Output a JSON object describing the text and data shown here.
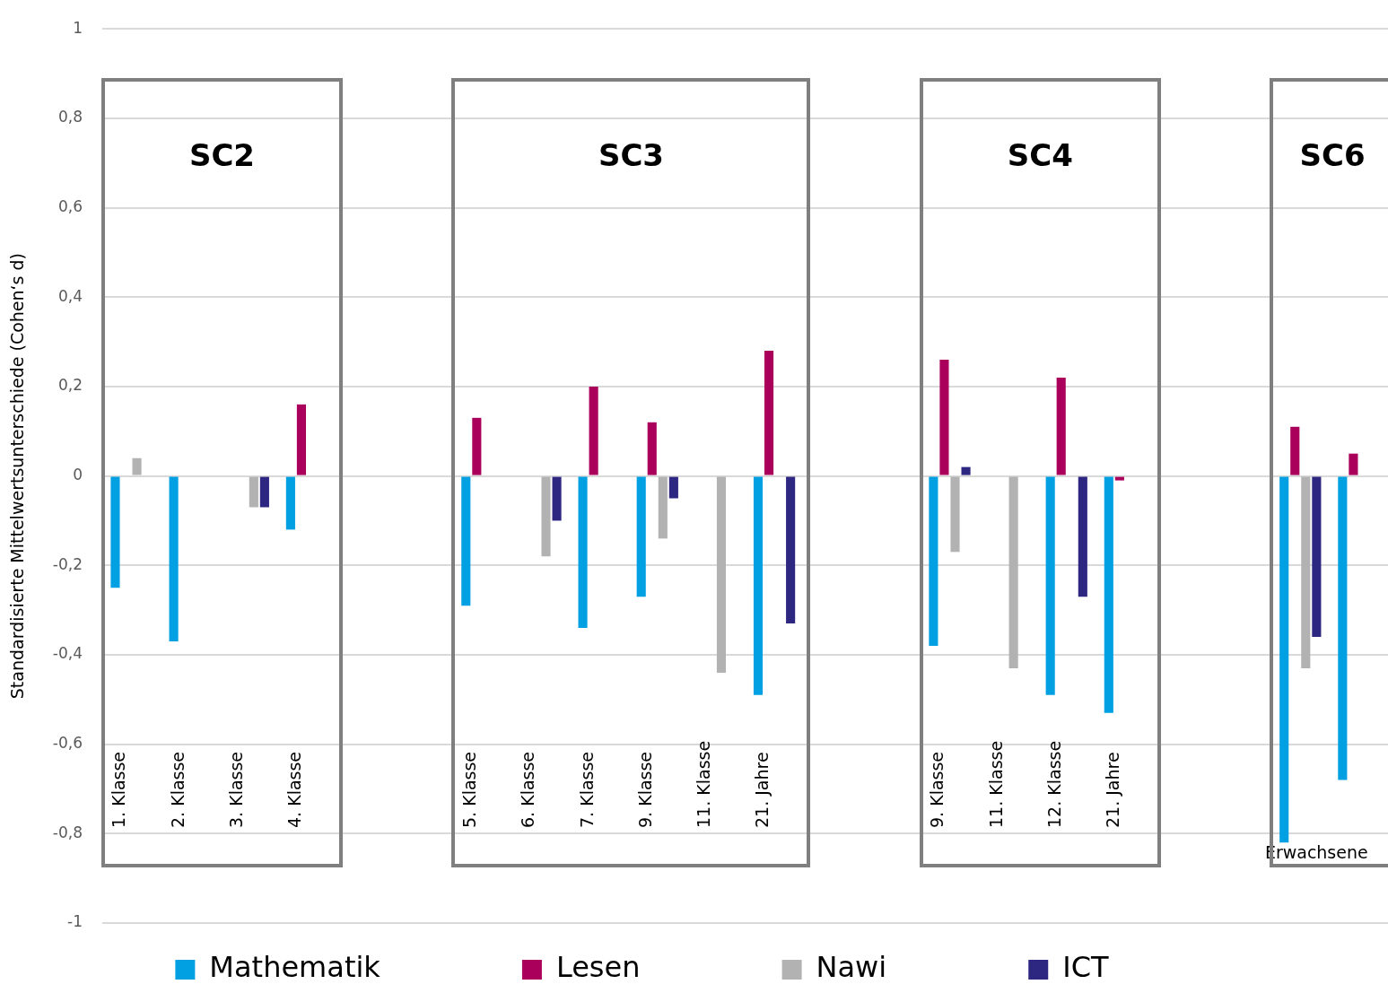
{
  "chart_data": {
    "type": "bar",
    "ylabel": "Standardisierte Mittelwertsunterschiede (Cohen‘s d)",
    "categories": [
      "1. Klasse",
      "2. Klasse",
      "3. Klasse",
      "4. Klasse",
      null,
      null,
      "5. Klasse",
      "6. Klasse",
      "7. Klasse",
      "9. Klasse",
      "11. Klasse",
      "21. Jahre",
      null,
      null,
      "9. Klasse",
      "11. Klasse",
      "12. Klasse",
      "21. Jahre",
      null,
      null,
      "Erwachsene",
      null
    ],
    "series": [
      {
        "name": "Mathematik",
        "color": "#00a0e2",
        "values": [
          -0.25,
          -0.37,
          null,
          -0.12,
          null,
          null,
          -0.29,
          null,
          -0.34,
          -0.27,
          null,
          -0.49,
          null,
          null,
          -0.38,
          null,
          -0.49,
          -0.53,
          null,
          null,
          -0.82,
          -0.68
        ]
      },
      {
        "name": "Lesen",
        "color": "#aa005c",
        "values": [
          null,
          null,
          null,
          0.16,
          null,
          null,
          0.13,
          null,
          0.2,
          0.12,
          null,
          0.28,
          null,
          null,
          0.26,
          null,
          0.22,
          -0.01,
          null,
          null,
          0.11,
          0.05
        ]
      },
      {
        "name": "Nawi",
        "color": "#b2b2b2",
        "values": [
          0.04,
          null,
          -0.07,
          null,
          null,
          null,
          null,
          -0.18,
          null,
          -0.14,
          -0.44,
          null,
          null,
          null,
          -0.17,
          -0.43,
          null,
          null,
          null,
          null,
          -0.43,
          null
        ]
      },
      {
        "name": "ICT",
        "color": "#2e2782",
        "values": [
          null,
          null,
          -0.07,
          null,
          null,
          null,
          null,
          -0.1,
          null,
          -0.05,
          null,
          -0.33,
          null,
          null,
          0.02,
          null,
          -0.27,
          null,
          null,
          null,
          -0.36,
          null
        ]
      }
    ],
    "annotations": [
      "SC2",
      "SC3",
      "SC4",
      "SC6"
    ],
    "ylim": [
      -1,
      1
    ],
    "yticks": [
      {
        "value": -1,
        "label": "-1"
      },
      {
        "value": -0.8,
        "label": "-0,8"
      },
      {
        "value": -0.6,
        "label": "-0,6"
      },
      {
        "value": -0.4,
        "label": "-0,4"
      },
      {
        "value": -0.2,
        "label": "-0,2"
      },
      {
        "value": 0,
        "label": "0"
      },
      {
        "value": 0.2,
        "label": "0,2"
      },
      {
        "value": 0.4,
        "label": "0,4"
      },
      {
        "value": 0.6,
        "label": "0,6"
      },
      {
        "value": 0.8,
        "label": "0,8"
      },
      {
        "value": 1,
        "label": "1"
      }
    ],
    "grid": "y",
    "legend": "bottom"
  }
}
